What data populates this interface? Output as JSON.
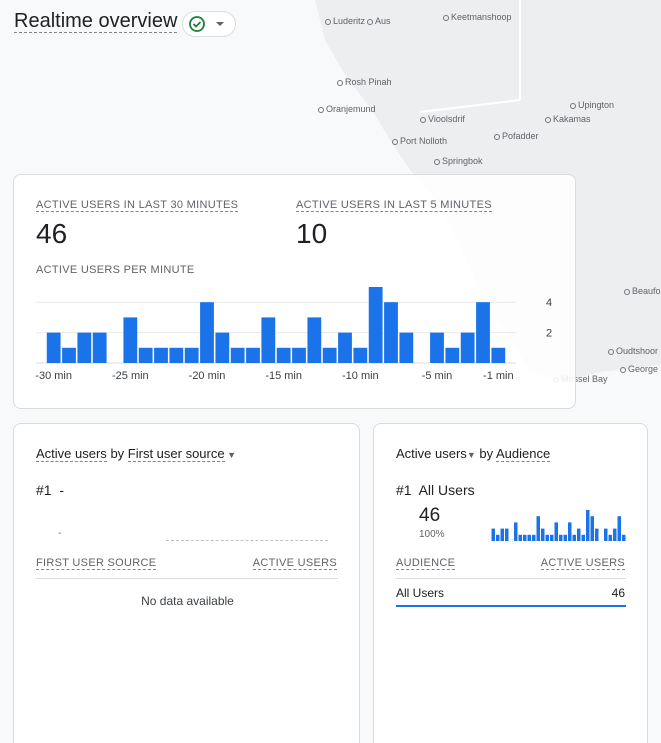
{
  "header": {
    "title": "Realtime overview"
  },
  "map": {
    "places": [
      "Luderitz",
      "Aus",
      "Keetmanshoop",
      "Rosh Pinah",
      "Oranjemund",
      "Vioolsdrif",
      "Upington",
      "Kakamas",
      "Port Nolloth",
      "Pofadder",
      "Springbok",
      "Beaufo",
      "Oudtshoor",
      "George",
      "Mossel Bay"
    ]
  },
  "summary": {
    "metrics": [
      {
        "label": "ACTIVE USERS IN LAST 30 MINUTES",
        "value": 46
      },
      {
        "label": "ACTIVE USERS IN LAST 5 MINUTES",
        "value": 10
      }
    ]
  },
  "chart": {
    "type": "bar",
    "title": "ACTIVE USERS PER MINUTE",
    "categories": [
      "-30 min",
      null,
      null,
      null,
      null,
      "-25 min",
      null,
      null,
      null,
      null,
      "-20 min",
      null,
      null,
      null,
      null,
      "-15 min",
      null,
      null,
      null,
      null,
      "-10 min",
      null,
      null,
      null,
      null,
      "-5 min",
      null,
      null,
      null,
      "-1 min"
    ],
    "values": [
      2,
      1,
      2,
      2,
      0,
      3,
      1,
      1,
      1,
      1,
      4,
      2,
      1,
      1,
      3,
      1,
      1,
      3,
      1,
      2,
      1,
      5,
      4,
      2,
      0,
      2,
      1,
      2,
      4,
      1
    ],
    "color": "#1a73e8",
    "ylim": [
      0,
      5
    ],
    "yticks": [
      2,
      4
    ],
    "grid": true
  },
  "source_card": {
    "metric": "Active users",
    "by": "by",
    "dimension": "First user source",
    "rank": "#1",
    "top_name": "-",
    "top_value": "-",
    "columns": [
      "FIRST USER SOURCE",
      "ACTIVE USERS"
    ],
    "empty": "No data available"
  },
  "audience_card": {
    "metric": "Active users",
    "by": "by",
    "dimension": "Audience",
    "rank": "#1",
    "top_name": "All Users",
    "top_value": 46,
    "top_share": "100%",
    "columns": [
      "AUDIENCE",
      "ACTIVE USERS"
    ],
    "rows": [
      [
        "All Users",
        46
      ]
    ]
  }
}
